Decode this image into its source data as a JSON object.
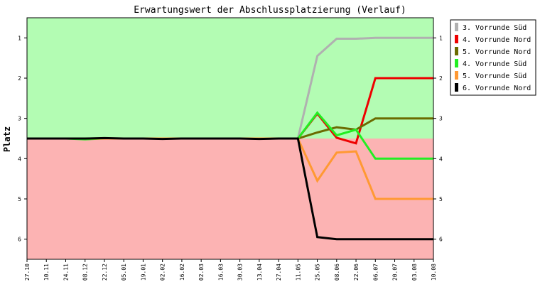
{
  "chart_data": {
    "type": "line",
    "title": "Erwartungswert der Abschlussplatzierung (Verlauf)",
    "ylabel": "Platz",
    "xlabel": "",
    "ylim": [
      6.5,
      0.5
    ],
    "y_ticks": [
      1,
      2,
      3,
      4,
      5,
      6
    ],
    "background_bands": [
      {
        "from": 0.5,
        "to": 3.5,
        "color": "#b3fcb3"
      },
      {
        "from": 3.5,
        "to": 6.5,
        "color": "#fcb3b3"
      }
    ],
    "categories": [
      "27.10",
      "10.11",
      "24.11",
      "08.12",
      "22.12",
      "05.01",
      "19.01",
      "02.02",
      "16.02",
      "02.03",
      "16.03",
      "30.03",
      "13.04",
      "27.04",
      "11.05",
      "25.05",
      "08.06",
      "22.06",
      "06.07",
      "20.07",
      "03.08",
      "10.08"
    ],
    "legend_position": "right",
    "series": [
      {
        "name": "3. Vorrunde Süd",
        "color": "#b0b0b0",
        "values": [
          3.5,
          3.5,
          3.5,
          3.5,
          3.5,
          3.5,
          3.5,
          3.5,
          3.5,
          3.5,
          3.5,
          3.5,
          3.5,
          3.5,
          3.5,
          1.45,
          1.02,
          1.02,
          1.0,
          1.0,
          1.0,
          1.0
        ]
      },
      {
        "name": "4. Vorrunde Nord",
        "color": "#ee0000",
        "values": [
          3.5,
          3.5,
          3.5,
          3.5,
          3.5,
          3.5,
          3.5,
          3.5,
          3.5,
          3.5,
          3.5,
          3.5,
          3.5,
          3.5,
          3.5,
          2.88,
          3.48,
          3.62,
          2.0,
          2.0,
          2.0,
          2.0
        ]
      },
      {
        "name": "5. Vorrunde Nord",
        "color": "#6b6b00",
        "values": [
          3.5,
          3.5,
          3.5,
          3.5,
          3.5,
          3.5,
          3.5,
          3.5,
          3.5,
          3.5,
          3.5,
          3.5,
          3.5,
          3.5,
          3.5,
          3.35,
          3.22,
          3.28,
          3.0,
          3.0,
          3.0,
          3.0
        ]
      },
      {
        "name": "4. Vorrunde Süd",
        "color": "#22ee22",
        "values": [
          3.5,
          3.5,
          3.5,
          3.52,
          3.5,
          3.5,
          3.5,
          3.5,
          3.5,
          3.5,
          3.5,
          3.5,
          3.5,
          3.5,
          3.5,
          2.86,
          3.42,
          3.28,
          4.0,
          4.0,
          4.0,
          4.0
        ]
      },
      {
        "name": "5. Vorrunde Süd",
        "color": "#ff9933",
        "values": [
          3.5,
          3.5,
          3.5,
          3.5,
          3.5,
          3.5,
          3.5,
          3.5,
          3.5,
          3.5,
          3.5,
          3.5,
          3.5,
          3.5,
          3.5,
          4.55,
          3.85,
          3.82,
          5.0,
          5.0,
          5.0,
          5.0
        ]
      },
      {
        "name": "6. Vorrunde Nord",
        "color": "#000000",
        "values": [
          3.5,
          3.5,
          3.5,
          3.5,
          3.49,
          3.5,
          3.5,
          3.51,
          3.5,
          3.5,
          3.5,
          3.5,
          3.51,
          3.5,
          3.5,
          5.95,
          6.0,
          6.0,
          6.0,
          6.0,
          6.0,
          6.0
        ]
      }
    ]
  }
}
